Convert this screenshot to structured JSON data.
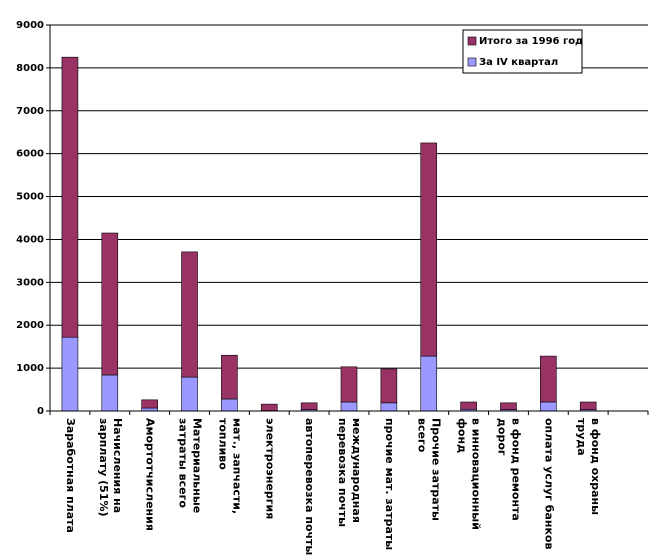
{
  "chart_data": {
    "type": "stacked_bar",
    "categories": [
      "Заработная плата",
      "Начисления на зарплату (51%)",
      "Амортотчисления",
      "Материальные затраты всего",
      "мат., запчасти, топливо",
      "электроэнергия",
      "автоперевозка почты",
      "международная перевозка почты",
      "прочие мат. затраты",
      "Прочие затраты всего",
      "в инновационный фонд",
      "в фонд ремонта дорог",
      "оплата услуг банков",
      "в фонд охраны труда",
      null
    ],
    "series": [
      {
        "name": "За IV квартал",
        "color": "#9999ff",
        "values": [
          1720,
          840,
          70,
          790,
          280,
          10,
          30,
          210,
          190,
          1280,
          40,
          30,
          210,
          30,
          null
        ]
      },
      {
        "name": "Итого за 1996 год",
        "color": "#993366",
        "values": [
          6530,
          3310,
          190,
          2920,
          1020,
          150,
          160,
          820,
          790,
          4970,
          170,
          160,
          1070,
          180,
          null
        ]
      }
    ],
    "ylim": [
      0,
      9000
    ],
    "yticks": [
      0,
      1000,
      2000,
      3000,
      4000,
      5000,
      6000,
      7000,
      8000,
      9000
    ],
    "grid": true,
    "legend": "top-right"
  }
}
